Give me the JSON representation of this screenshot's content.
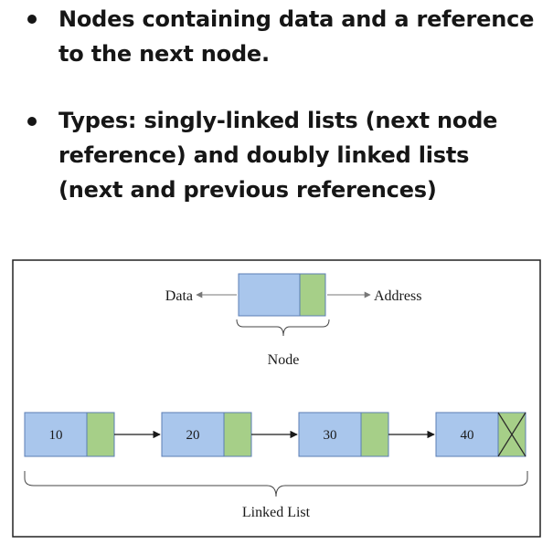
{
  "bullets": [
    {
      "text": "Nodes containing data and a reference to the next node."
    },
    {
      "text": "Types: singly-linked lists (next node reference) and doubly linked lists (next and previous references)"
    }
  ],
  "diagram": {
    "legend": {
      "data_label": "Data",
      "address_label": "Address",
      "node_label": "Node"
    },
    "nodes": [
      {
        "value": "10",
        "next": "pointer"
      },
      {
        "value": "20",
        "next": "pointer"
      },
      {
        "value": "30",
        "next": "pointer"
      },
      {
        "value": "40",
        "next": "null"
      }
    ],
    "list_label": "Linked List",
    "colors": {
      "data_fill": "#a9c6ec",
      "address_fill": "#a6cf88",
      "stroke": "#5b7db5"
    }
  }
}
